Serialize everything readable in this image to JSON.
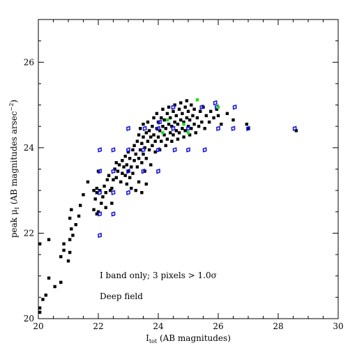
{
  "chart_data": {
    "type": "scatter",
    "title": "",
    "xlabel": "I_tot (AB magnitudes)",
    "xlabel_main": "I",
    "xlabel_sub": "tot",
    "xlabel_rest": " (AB magnitudes)",
    "ylabel_main": "peak μ",
    "ylabel_sub": "I",
    "ylabel_rest": "  (AB magnitudes arsec",
    "ylabel_sup": "−2",
    "ylabel_close": ")",
    "xlim": [
      20,
      30
    ],
    "ylim": [
      20,
      27
    ],
    "xticks": [
      20,
      22,
      24,
      26,
      28,
      30
    ],
    "yticks": [
      20,
      22,
      24,
      26
    ],
    "xminor_step": 0.5,
    "yminor_step": 0.5,
    "grid": false,
    "annotations": [
      {
        "text": "I band only; 3 pixels > 1.0σ",
        "x": 22.05,
        "y": 20.95
      },
      {
        "text": "Deep field",
        "x": 22.05,
        "y": 20.47
      }
    ],
    "series": [
      {
        "marker": "filled-square",
        "color": "#000000",
        "points": [
          [
            20.05,
            20.25
          ],
          [
            20.05,
            20.15
          ],
          [
            20.15,
            20.45
          ],
          [
            20.25,
            20.55
          ],
          [
            20.35,
            20.95
          ],
          [
            20.55,
            20.75
          ],
          [
            20.75,
            20.85
          ],
          [
            20.05,
            21.75
          ],
          [
            20.35,
            21.85
          ],
          [
            20.85,
            21.6
          ],
          [
            20.75,
            21.45
          ],
          [
            20.85,
            21.75
          ],
          [
            21.0,
            21.35
          ],
          [
            21.05,
            21.55
          ],
          [
            21.05,
            21.85
          ],
          [
            21.15,
            21.95
          ],
          [
            21.1,
            22.1
          ],
          [
            21.05,
            22.35
          ],
          [
            21.1,
            22.55
          ],
          [
            21.25,
            22.2
          ],
          [
            21.35,
            22.4
          ],
          [
            21.4,
            22.65
          ],
          [
            21.5,
            22.9
          ],
          [
            21.85,
            22.55
          ],
          [
            21.9,
            22.8
          ],
          [
            21.95,
            22.95
          ],
          [
            21.95,
            23.05
          ],
          [
            22.0,
            22.5
          ],
          [
            21.95,
            22.45
          ],
          [
            22.05,
            23.0
          ],
          [
            22.1,
            22.7
          ],
          [
            22.15,
            22.85
          ],
          [
            22.2,
            23.1
          ],
          [
            22.25,
            22.95
          ],
          [
            22.3,
            23.25
          ],
          [
            22.35,
            23.35
          ],
          [
            22.45,
            23.05
          ],
          [
            22.5,
            23.25
          ],
          [
            22.55,
            23.5
          ],
          [
            22.6,
            23.3
          ],
          [
            22.6,
            23.65
          ],
          [
            22.65,
            23.45
          ],
          [
            22.7,
            23.6
          ],
          [
            22.75,
            23.2
          ],
          [
            22.8,
            23.4
          ],
          [
            22.8,
            23.7
          ],
          [
            22.85,
            23.55
          ],
          [
            22.9,
            23.35
          ],
          [
            22.9,
            23.8
          ],
          [
            22.95,
            23.15
          ],
          [
            22.95,
            23.6
          ],
          [
            23.0,
            23.45
          ],
          [
            23.0,
            23.9
          ],
          [
            23.05,
            23.3
          ],
          [
            23.05,
            23.75
          ],
          [
            23.1,
            23.05
          ],
          [
            23.1,
            23.55
          ],
          [
            23.15,
            23.95
          ],
          [
            23.15,
            23.4
          ],
          [
            23.2,
            23.7
          ],
          [
            23.2,
            24.05
          ],
          [
            23.25,
            23.85
          ],
          [
            23.3,
            23.55
          ],
          [
            23.3,
            24.15
          ],
          [
            23.35,
            23.75
          ],
          [
            23.35,
            24.3
          ],
          [
            23.4,
            23.95
          ],
          [
            23.4,
            24.45
          ],
          [
            23.45,
            23.65
          ],
          [
            23.45,
            24.1
          ],
          [
            23.5,
            23.85
          ],
          [
            23.5,
            24.25
          ],
          [
            23.5,
            24.55
          ],
          [
            23.55,
            24.0
          ],
          [
            23.55,
            23.45
          ],
          [
            23.6,
            24.35
          ],
          [
            23.6,
            23.75
          ],
          [
            23.65,
            24.15
          ],
          [
            23.65,
            24.6
          ],
          [
            23.7,
            23.95
          ],
          [
            23.7,
            24.4
          ],
          [
            23.75,
            24.25
          ],
          [
            23.75,
            23.6
          ],
          [
            23.8,
            24.5
          ],
          [
            23.8,
            24.05
          ],
          [
            23.85,
            24.3
          ],
          [
            23.85,
            24.7
          ],
          [
            23.9,
            23.9
          ],
          [
            23.9,
            24.15
          ],
          [
            23.95,
            24.45
          ],
          [
            23.95,
            24.8
          ],
          [
            24.0,
            24.25
          ],
          [
            24.0,
            24.6
          ],
          [
            24.05,
            23.95
          ],
          [
            24.05,
            24.4
          ],
          [
            24.1,
            24.7
          ],
          [
            24.1,
            24.15
          ],
          [
            24.15,
            24.5
          ],
          [
            24.15,
            24.9
          ],
          [
            24.2,
            24.3
          ],
          [
            24.2,
            24.65
          ],
          [
            24.25,
            24.05
          ],
          [
            24.25,
            24.45
          ],
          [
            24.3,
            24.8
          ],
          [
            24.3,
            24.2
          ],
          [
            24.35,
            24.55
          ],
          [
            24.35,
            24.95
          ],
          [
            24.4,
            24.35
          ],
          [
            24.4,
            24.7
          ],
          [
            24.45,
            24.15
          ],
          [
            24.45,
            24.5
          ],
          [
            24.5,
            24.85
          ],
          [
            24.5,
            24.3
          ],
          [
            24.55,
            24.6
          ],
          [
            24.55,
            25.0
          ],
          [
            24.6,
            24.4
          ],
          [
            24.6,
            24.75
          ],
          [
            24.65,
            24.2
          ],
          [
            24.65,
            24.55
          ],
          [
            24.7,
            24.9
          ],
          [
            24.7,
            24.35
          ],
          [
            24.75,
            24.65
          ],
          [
            24.75,
            25.05
          ],
          [
            24.8,
            24.45
          ],
          [
            24.8,
            24.8
          ],
          [
            24.85,
            24.25
          ],
          [
            24.85,
            24.6
          ],
          [
            24.9,
            24.95
          ],
          [
            24.9,
            24.4
          ],
          [
            24.95,
            24.7
          ],
          [
            24.95,
            25.1
          ],
          [
            25.0,
            24.5
          ],
          [
            25.0,
            24.85
          ],
          [
            25.05,
            24.3
          ],
          [
            25.05,
            24.65
          ],
          [
            25.1,
            25.0
          ],
          [
            25.1,
            24.45
          ],
          [
            25.15,
            24.75
          ],
          [
            25.2,
            24.55
          ],
          [
            25.2,
            24.9
          ],
          [
            25.25,
            24.35
          ],
          [
            25.3,
            24.7
          ],
          [
            25.35,
            24.5
          ],
          [
            25.4,
            24.85
          ],
          [
            25.45,
            24.6
          ],
          [
            25.5,
            24.95
          ],
          [
            25.55,
            24.45
          ],
          [
            25.6,
            24.75
          ],
          [
            25.7,
            24.6
          ],
          [
            25.75,
            24.85
          ],
          [
            25.85,
            24.7
          ],
          [
            25.95,
            24.9
          ],
          [
            26.0,
            24.75
          ],
          [
            26.1,
            24.55
          ],
          [
            26.3,
            24.8
          ],
          [
            26.5,
            24.65
          ],
          [
            26.95,
            24.55
          ],
          [
            27.0,
            24.45
          ],
          [
            28.6,
            24.4
          ],
          [
            23.35,
            23.2
          ],
          [
            23.25,
            23.0
          ],
          [
            23.45,
            22.95
          ],
          [
            22.45,
            22.7
          ],
          [
            22.4,
            23.0
          ],
          [
            22.25,
            22.6
          ],
          [
            21.65,
            23.2
          ],
          [
            21.85,
            23.0
          ],
          [
            22.0,
            23.45
          ],
          [
            23.6,
            23.15
          ]
        ]
      },
      {
        "marker": "open-diamond",
        "color": "#1a1adc",
        "points": [
          [
            22.05,
            21.95
          ],
          [
            22.05,
            22.45
          ],
          [
            22.5,
            22.45
          ],
          [
            22.05,
            22.95
          ],
          [
            22.5,
            22.95
          ],
          [
            23.0,
            22.95
          ],
          [
            22.05,
            23.45
          ],
          [
            22.5,
            23.45
          ],
          [
            23.0,
            23.45
          ],
          [
            23.5,
            23.45
          ],
          [
            24.0,
            23.45
          ],
          [
            22.05,
            23.95
          ],
          [
            22.5,
            23.95
          ],
          [
            23.0,
            23.95
          ],
          [
            23.5,
            23.95
          ],
          [
            24.0,
            23.95
          ],
          [
            24.55,
            23.95
          ],
          [
            25.0,
            23.95
          ],
          [
            25.55,
            23.95
          ],
          [
            23.0,
            24.45
          ],
          [
            23.55,
            24.45
          ],
          [
            24.0,
            24.45
          ],
          [
            24.5,
            24.45
          ],
          [
            25.0,
            24.45
          ],
          [
            26.0,
            24.45
          ],
          [
            26.5,
            24.45
          ],
          [
            27.0,
            24.45
          ],
          [
            28.55,
            24.45
          ],
          [
            24.5,
            24.95
          ],
          [
            25.45,
            24.95
          ],
          [
            25.95,
            24.95
          ],
          [
            26.55,
            24.95
          ],
          [
            25.9,
            25.05
          ],
          [
            24.05,
            24.6
          ]
        ]
      },
      {
        "marker": "filled-square",
        "color": "#22dd22",
        "points": [
          [
            25.3,
            25.12
          ],
          [
            24.3,
            24.65
          ],
          [
            24.85,
            24.55
          ],
          [
            25.0,
            24.35
          ],
          [
            24.15,
            24.35
          ],
          [
            26.0,
            24.95
          ]
        ]
      }
    ]
  }
}
